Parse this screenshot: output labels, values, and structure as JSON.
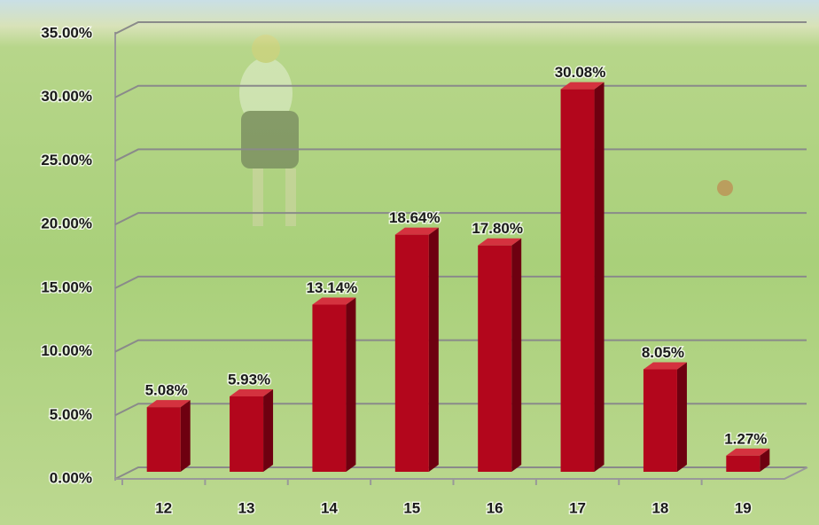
{
  "chart_data": {
    "type": "bar3d",
    "categories": [
      "12",
      "13",
      "14",
      "15",
      "16",
      "17",
      "18",
      "19"
    ],
    "values": [
      5.08,
      5.93,
      13.14,
      18.64,
      17.8,
      30.08,
      8.05,
      1.27
    ],
    "value_labels": [
      "5.08%",
      "5.93%",
      "13.14%",
      "18.64%",
      "17.80%",
      "30.08%",
      "8.05%",
      "1.27%"
    ],
    "color": "#b3061c",
    "ylim": [
      0,
      35
    ],
    "yticks": [
      {
        "value": 0,
        "label": "0.00%"
      },
      {
        "value": 5,
        "label": "5.00%"
      },
      {
        "value": 10,
        "label": "10.00%"
      },
      {
        "value": 15,
        "label": "15.00%"
      },
      {
        "value": 20,
        "label": "20.00%"
      },
      {
        "value": 25,
        "label": "25.00%"
      },
      {
        "value": 30,
        "label": "30.00%"
      },
      {
        "value": 35,
        "label": "35.00%"
      }
    ],
    "grid": true
  }
}
